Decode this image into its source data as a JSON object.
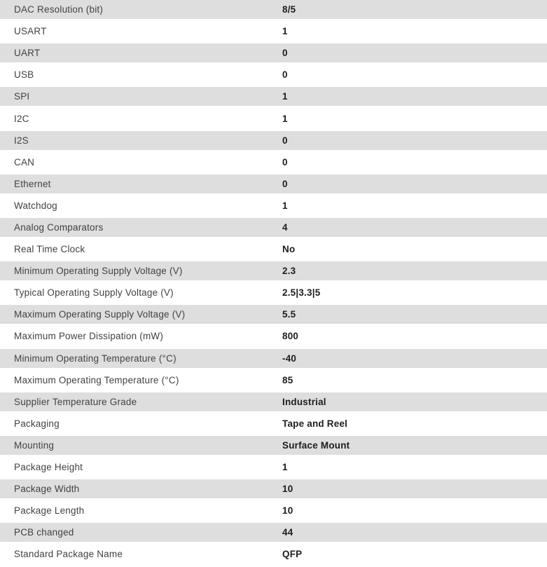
{
  "table": {
    "name": "product-specifications",
    "shaded_row_color": "#dedede",
    "label_text_color": "#3f4247",
    "value_text_color": "#1d1d1d",
    "rows": [
      {
        "label": "DAC Resolution (bit)",
        "value": "8/5"
      },
      {
        "label": "USART",
        "value": "1"
      },
      {
        "label": "UART",
        "value": "0"
      },
      {
        "label": "USB",
        "value": "0"
      },
      {
        "label": "SPI",
        "value": "1"
      },
      {
        "label": "I2C",
        "value": "1"
      },
      {
        "label": "I2S",
        "value": "0"
      },
      {
        "label": "CAN",
        "value": "0"
      },
      {
        "label": "Ethernet",
        "value": "0"
      },
      {
        "label": "Watchdog",
        "value": "1"
      },
      {
        "label": "Analog Comparators",
        "value": "4"
      },
      {
        "label": "Real Time Clock",
        "value": "No"
      },
      {
        "label": "Minimum Operating Supply Voltage (V)",
        "value": "2.3"
      },
      {
        "label": "Typical Operating Supply Voltage (V)",
        "value": "2.5|3.3|5"
      },
      {
        "label": "Maximum Operating Supply Voltage (V)",
        "value": "5.5"
      },
      {
        "label": "Maximum Power Dissipation (mW)",
        "value": "800"
      },
      {
        "label": "Minimum Operating Temperature (°C)",
        "value": "-40"
      },
      {
        "label": "Maximum Operating Temperature (°C)",
        "value": "85"
      },
      {
        "label": "Supplier Temperature Grade",
        "value": "Industrial"
      },
      {
        "label": "Packaging",
        "value": "Tape and Reel"
      },
      {
        "label": "Mounting",
        "value": "Surface Mount"
      },
      {
        "label": "Package Height",
        "value": "1"
      },
      {
        "label": "Package Width",
        "value": "10"
      },
      {
        "label": "Package Length",
        "value": "10"
      },
      {
        "label": "PCB changed",
        "value": "44"
      },
      {
        "label": "Standard Package Name",
        "value": "QFP"
      }
    ]
  }
}
